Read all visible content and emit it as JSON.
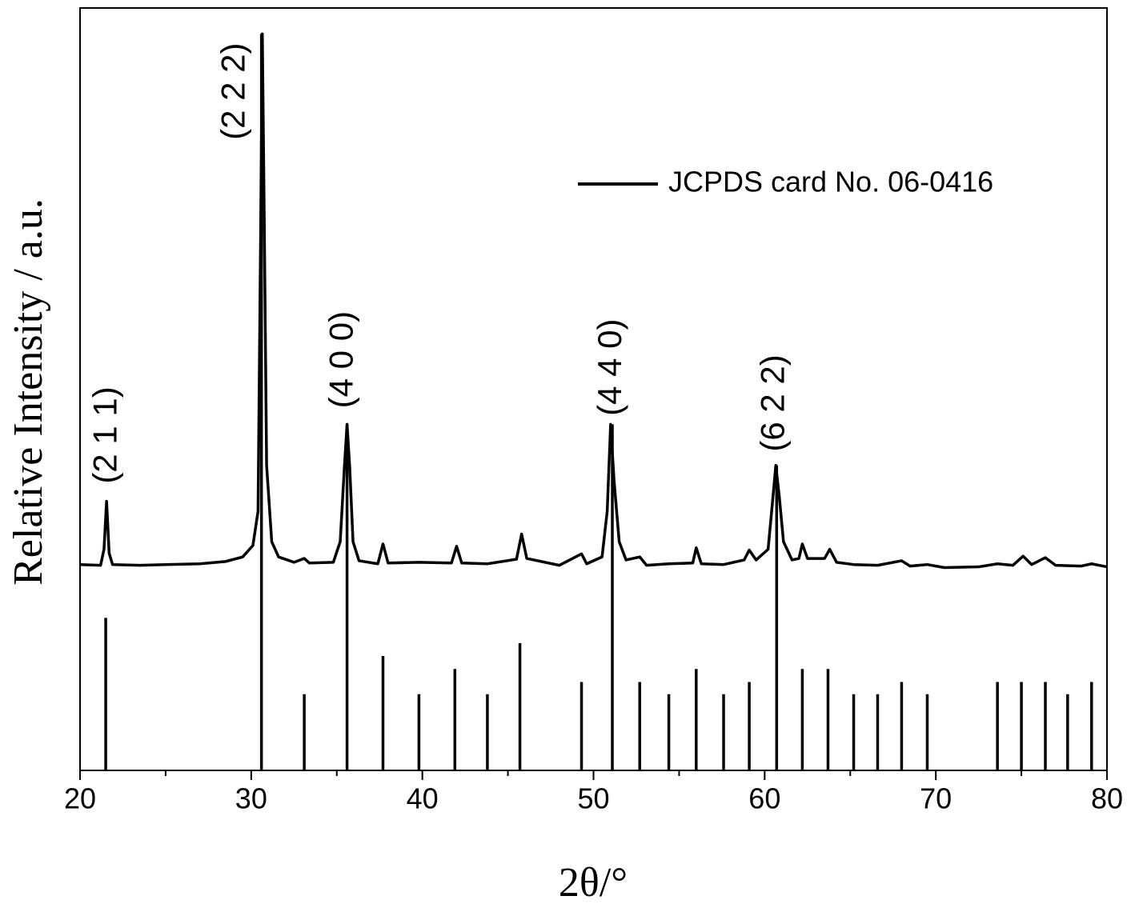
{
  "chart_data": {
    "type": "line",
    "xlabel": "2θ/°",
    "ylabel": "Relative Intensity / a.u.",
    "xlim": [
      20,
      80
    ],
    "ylim": [
      0,
      100
    ],
    "xticks": [
      20,
      30,
      40,
      50,
      60,
      70,
      80
    ],
    "xminorticks": [
      25,
      35,
      45,
      55,
      65,
      75
    ],
    "legend_position": "upper right",
    "series": [
      {
        "color": "#000000",
        "mark": "line",
        "x": [
          20.0,
          21.2,
          21.4,
          21.55,
          21.7,
          21.9,
          23.5,
          25.0,
          27.0,
          28.5,
          29.5,
          30.1,
          30.4,
          30.55,
          30.65,
          30.75,
          30.9,
          31.2,
          31.6,
          32.5,
          33.1,
          33.4,
          34.8,
          35.2,
          35.45,
          35.6,
          35.75,
          35.95,
          36.3,
          37.4,
          37.7,
          38.0,
          39.8,
          41.7,
          42.0,
          42.3,
          43.8,
          45.5,
          45.8,
          46.1,
          48.0,
          49.3,
          49.6,
          50.5,
          50.8,
          51.0,
          51.2,
          51.5,
          51.9,
          52.7,
          53.1,
          54.4,
          55.8,
          56.0,
          56.3,
          57.6,
          58.8,
          59.1,
          59.5,
          60.2,
          60.45,
          60.65,
          60.85,
          61.1,
          61.6,
          62.0,
          62.2,
          62.5,
          63.5,
          63.8,
          64.2,
          65.2,
          66.6,
          68.0,
          68.5,
          69.5,
          70.5,
          72.5,
          73.6,
          74.5,
          75.1,
          75.6,
          76.4,
          77.0,
          78.5,
          79.1,
          80.0
        ],
        "values": [
          27.0,
          26.9,
          29.0,
          35.3,
          28.5,
          27.0,
          26.9,
          27.0,
          27.1,
          27.4,
          28.0,
          29.5,
          34.0,
          70.0,
          96.6,
          75.0,
          40.0,
          30.0,
          28.0,
          27.3,
          27.8,
          27.2,
          27.3,
          30.0,
          40.0,
          45.4,
          40.0,
          30.0,
          27.5,
          27.1,
          29.7,
          27.2,
          27.3,
          27.2,
          29.4,
          27.2,
          27.1,
          27.7,
          31.0,
          27.8,
          26.9,
          28.4,
          27.1,
          28.0,
          34.0,
          45.4,
          38.0,
          30.0,
          27.6,
          28.0,
          26.9,
          27.1,
          27.2,
          29.2,
          27.1,
          27.0,
          27.6,
          28.9,
          27.6,
          29.0,
          35.0,
          40.0,
          36.0,
          30.0,
          27.6,
          27.8,
          29.7,
          27.8,
          27.8,
          29.0,
          27.3,
          27.0,
          26.9,
          27.5,
          26.8,
          27.0,
          26.6,
          26.7,
          27.1,
          26.9,
          28.1,
          27.0,
          27.9,
          26.9,
          26.8,
          27.1,
          26.7
        ]
      },
      {
        "name": "JCPDS card No. 06-0416",
        "color": "#000000",
        "mark": "stick",
        "x": [
          21.5,
          30.6,
          33.1,
          35.6,
          37.7,
          39.8,
          41.9,
          43.8,
          45.7,
          49.3,
          51.1,
          52.7,
          54.4,
          56.0,
          57.6,
          59.1,
          60.7,
          62.2,
          63.7,
          65.2,
          66.6,
          68.0,
          69.5,
          73.6,
          75.0,
          76.4,
          77.7,
          79.1
        ],
        "values": [
          20.0,
          96.6,
          10.0,
          45.4,
          15.0,
          10.0,
          13.3,
          10.0,
          16.7,
          11.6,
          45.4,
          11.6,
          10.0,
          13.3,
          10.0,
          11.6,
          40.0,
          13.3,
          13.3,
          10.0,
          10.0,
          11.6,
          10.0,
          11.6,
          11.6,
          11.6,
          10.0,
          11.6
        ]
      }
    ],
    "annotations": [
      {
        "text": "(2 1 1)",
        "x": 21.6,
        "y": 37.6
      },
      {
        "text": "(2 2 2)",
        "x": 29.1,
        "y": 82.7
      },
      {
        "text": "(4 0 0)",
        "x": 35.4,
        "y": 47.5
      },
      {
        "text": "(4 4 0)",
        "x": 51.1,
        "y": 46.5
      },
      {
        "text": "(6 2 2)",
        "x": 60.6,
        "y": 41.8
      }
    ]
  }
}
